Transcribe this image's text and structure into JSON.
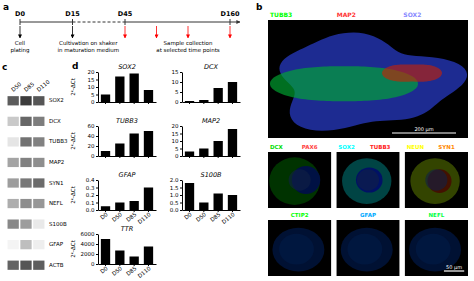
{
  "chart_data": [
    {
      "type": "timeline",
      "title": "a",
      "categories": [
        "D0",
        "D15",
        "D45",
        "D160"
      ],
      "x": [
        0.0,
        1.0,
        2.0,
        4.0
      ],
      "segments": [
        {
          "x": [
            0.0,
            1.0
          ],
          "line_style": "solid"
        },
        {
          "x": [
            1.0,
            2.0
          ],
          "line_style": "dashed"
        },
        {
          "x": [
            2.0,
            4.0
          ],
          "line_style": "solid"
        }
      ],
      "arrows": [
        {
          "x": [
            0.0,
            1.0
          ],
          "color": "#000000"
        },
        {
          "x": [
            2.0,
            2.6,
            3.2,
            4.0
          ],
          "color": "#ff0000"
        }
      ],
      "annotations": [
        {
          "text": [
            "Cell",
            "plating"
          ],
          "x": 0.0
        },
        {
          "text": [
            "Cultivation on shaker",
            "in maturation medium"
          ],
          "x": 1.3
        },
        {
          "text": [
            "Sample collection",
            "at selected time points"
          ],
          "x": 3.2
        }
      ]
    },
    {
      "type": "heatmap",
      "title": "c",
      "categories": [
        "SOX2",
        "DCX",
        "TUBB3",
        "MAP2",
        "SYN1",
        "NEFL",
        "S100B",
        "GFAP",
        "ACTB"
      ],
      "columns": [
        "D50",
        "D85",
        "D110"
      ],
      "cells": [
        [
          0.75,
          0.9,
          0.78
        ],
        [
          0.25,
          0.7,
          0.6
        ],
        [
          0.12,
          0.65,
          0.58
        ],
        [
          0.42,
          0.58,
          0.52
        ],
        [
          0.45,
          0.62,
          0.68
        ],
        [
          0.38,
          0.52,
          0.48
        ],
        [
          0.55,
          0.45,
          0.1
        ],
        [
          0.05,
          0.3,
          0.08
        ],
        [
          0.72,
          0.78,
          0.74
        ]
      ]
    },
    {
      "type": "bar",
      "title": "SOX2",
      "categories": [
        "D0",
        "D50",
        "D85",
        "D110"
      ],
      "values": [
        5,
        17,
        19,
        8
      ],
      "color": "#000000",
      "ylim": [
        0,
        20
      ],
      "yticks": [
        0,
        5,
        10,
        15,
        20
      ],
      "ylabel": "2ᵏ-ΔCt",
      "tick_labels": "y",
      "annotations": [
        "d"
      ]
    },
    {
      "type": "bar",
      "title": "DCX",
      "categories": [
        "D0",
        "D50",
        "D85",
        "D110"
      ],
      "values": [
        0.5,
        1,
        7,
        10
      ],
      "color": "#000000",
      "ylim": [
        0,
        15
      ],
      "yticks": [
        0,
        5,
        10,
        15
      ],
      "tick_labels": "y"
    },
    {
      "type": "bar",
      "title": "TUBB3",
      "categories": [
        "D0",
        "D50",
        "D85",
        "D110"
      ],
      "values": [
        10,
        25,
        45,
        50
      ],
      "color": "#000000",
      "ylim": [
        0,
        60
      ],
      "yticks": [
        0,
        20,
        40,
        60
      ],
      "ylabel": "2ᵏ-ΔCt",
      "tick_labels": "y"
    },
    {
      "type": "bar",
      "title": "MAP2",
      "categories": [
        "D0",
        "D50",
        "D85",
        "D110"
      ],
      "values": [
        3,
        5,
        10,
        18
      ],
      "color": "#000000",
      "ylim": [
        0,
        20
      ],
      "yticks": [
        0,
        5,
        10,
        15,
        20
      ],
      "tick_labels": "y"
    },
    {
      "type": "bar",
      "title": "GFAP",
      "categories": [
        "D0",
        "D50",
        "D85",
        "D110"
      ],
      "values": [
        0.05,
        0.1,
        0.12,
        0.3
      ],
      "color": "#000000",
      "ylim": [
        0,
        0.4
      ],
      "yticks": [
        {
          "value": 0,
          "label": "0.0"
        },
        0.1,
        0.2,
        0.3,
        0.4
      ],
      "ylabel": "2ᵏ-ΔCt"
    },
    {
      "type": "bar",
      "title": "S100B",
      "categories": [
        "D0",
        "D50",
        "D85",
        "D110"
      ],
      "values": [
        1.8,
        0.5,
        1.1,
        1.0
      ],
      "color": "#000000",
      "ylim": [
        0,
        2.0
      ],
      "yticks": [
        {
          "value": 0,
          "label": "0.0"
        },
        0.5,
        {
          "value": 1.0,
          "label": "1.0"
        },
        1.5,
        {
          "value": 2.0,
          "label": "2.0"
        }
      ]
    },
    {
      "type": "bar",
      "title": "TTR",
      "categories": [
        "D0",
        "D50",
        "D85",
        "D110"
      ],
      "values": [
        5000,
        2700,
        1500,
        3500
      ],
      "color": "#000000",
      "ylim": [
        0,
        6000
      ],
      "yticks": [
        0,
        2000,
        4000,
        6000
      ],
      "ylabel": "2ᵏ-ΔCt"
    },
    {
      "type": "image",
      "title": "b",
      "images": [
        {
          "labels": [
            "TUBB3",
            "MAP2",
            "SOX2"
          ],
          "colors": [
            "#00ff00",
            "#ff3333",
            "#8888ff"
          ],
          "scale_bar": "200 μm"
        },
        {
          "labels": [
            "DCX",
            "PAX6"
          ],
          "colors": [
            "#00dd00",
            "#ff4444"
          ]
        },
        {
          "labels": [
            "SOX2",
            "TUBB3"
          ],
          "colors": [
            "#00ffff",
            "#ff2222"
          ]
        },
        {
          "labels": [
            "NEUN",
            "SYN1"
          ],
          "colors": [
            "#ffff00",
            "#ff8800"
          ]
        },
        {
          "labels": [
            "CTIP2"
          ],
          "colors": [
            "#00ff00"
          ]
        },
        {
          "labels": [
            "GFAP"
          ],
          "colors": [
            "#00aaff"
          ]
        },
        {
          "labels": [
            "NEFL"
          ],
          "colors": [
            "#00ff44"
          ],
          "scale_bar": "50 μm"
        }
      ]
    }
  ]
}
